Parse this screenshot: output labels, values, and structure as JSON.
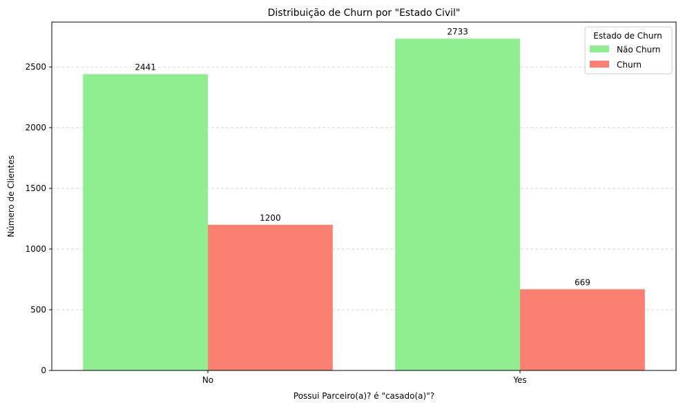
{
  "chart_data": {
    "type": "bar",
    "title": "Distribuição de Churn por \"Estado Civil\"",
    "xlabel": "Possui Parceiro(a)? é \"casado(a)\"?",
    "ylabel": "Número de Clientes",
    "categories": [
      "No",
      "Yes"
    ],
    "series": [
      {
        "name": "Não Churn",
        "values": [
          2441,
          2733
        ],
        "color": "#90ee90"
      },
      {
        "name": "Churn",
        "values": [
          1200,
          669
        ],
        "color": "#fa8072"
      }
    ],
    "ylim": [
      0,
      2870
    ],
    "yticks": [
      0,
      500,
      1000,
      1500,
      2000,
      2500
    ],
    "grid": "y-dashed",
    "legend": {
      "title": "Estado de Churn",
      "placement": "top-right"
    }
  }
}
